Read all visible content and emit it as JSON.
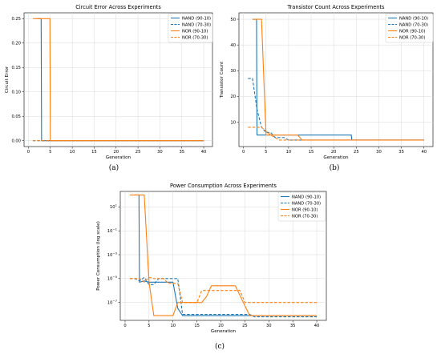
{
  "captions": [
    "(a)",
    "(b)",
    "(c)"
  ],
  "colors": {
    "nand": "#1f77b4",
    "nor": "#ff7f0e",
    "axis": "#000000"
  },
  "chart_data": [
    {
      "type": "line",
      "title": "Circuit Error Across Experiments",
      "xlabel": "Generation",
      "ylabel": "Circuit Error",
      "xlim": [
        -1,
        42
      ],
      "ylim": [
        -0.012,
        0.262
      ],
      "xticks": [
        0,
        5,
        10,
        15,
        20,
        25,
        30,
        35,
        40
      ],
      "yticks": [
        0.0,
        0.05,
        0.1,
        0.15,
        0.2,
        0.25
      ],
      "ytick_labels": [
        "0.00",
        "0.05",
        "0.10",
        "0.15",
        "0.20",
        "0.25"
      ],
      "log_y": false,
      "legend": "top-right",
      "series": [
        {
          "name": "NAND (90-10)",
          "style": "solid",
          "color": "#1f77b4",
          "x": [
            2,
            2.9,
            3,
            40
          ],
          "y": [
            0.25,
            0.25,
            0.0,
            0.0
          ]
        },
        {
          "name": "NAND (70-30)",
          "style": "dashed",
          "color": "#1f77b4",
          "x": [
            1,
            40
          ],
          "y": [
            0.0,
            0.0
          ]
        },
        {
          "name": "NOR (90-10)",
          "style": "solid",
          "color": "#ff7f0e",
          "x": [
            1,
            4.9,
            5,
            40
          ],
          "y": [
            0.25,
            0.25,
            0.0,
            0.0
          ]
        },
        {
          "name": "NOR (70-30)",
          "style": "dashed",
          "color": "#ff7f0e",
          "x": [
            1,
            40
          ],
          "y": [
            0.0,
            0.0
          ]
        }
      ]
    },
    {
      "type": "line",
      "title": "Transistor Count Across Experiments",
      "xlabel": "Generation",
      "ylabel": "Transistor Count",
      "xlim": [
        -1,
        42
      ],
      "ylim": [
        0.5,
        52.5
      ],
      "xticks": [
        0,
        5,
        10,
        15,
        20,
        25,
        30,
        35,
        40
      ],
      "yticks": [
        10,
        20,
        30,
        40,
        50
      ],
      "ytick_labels": [
        "10",
        "20",
        "30",
        "40",
        "50"
      ],
      "log_y": false,
      "legend": "top-right",
      "series": [
        {
          "name": "NAND (90-10)",
          "style": "solid",
          "color": "#1f77b4",
          "x": [
            2,
            2.9,
            3,
            23.9,
            24,
            40
          ],
          "y": [
            50,
            50,
            5,
            5,
            3,
            3
          ]
        },
        {
          "name": "NAND (70-30)",
          "style": "dashed",
          "color": "#1f77b4",
          "x": [
            1,
            2,
            3,
            4,
            5,
            6,
            7,
            8,
            9,
            10,
            21,
            22,
            40
          ],
          "y": [
            27,
            27,
            15,
            8,
            6,
            6,
            4,
            4,
            4,
            3,
            3,
            3,
            3
          ]
        },
        {
          "name": "NOR (90-10)",
          "style": "solid",
          "color": "#ff7f0e",
          "x": [
            2,
            4,
            5,
            9,
            10,
            12,
            13,
            40
          ],
          "y": [
            50,
            50,
            5,
            5,
            5,
            5,
            3,
            3
          ]
        },
        {
          "name": "NOR (70-30)",
          "style": "dashed",
          "color": "#ff7f0e",
          "x": [
            1,
            4,
            6,
            7,
            8,
            40
          ],
          "y": [
            8,
            8,
            5,
            4,
            3,
            3
          ]
        }
      ]
    },
    {
      "type": "line",
      "title": "Power Consumption Across Experiments",
      "xlabel": "Generation",
      "ylabel": "Power Consumption (log scale)",
      "xlim": [
        -1,
        42
      ],
      "ylim_log10": [
        -8.5,
        2.3
      ],
      "xticks": [
        0,
        5,
        10,
        15,
        20,
        25,
        30,
        35,
        40
      ],
      "yticks_log10": [
        1,
        -1,
        -3,
        -5,
        -7
      ],
      "ytick_labels": [
        "10^1",
        "10^-1",
        "10^-3",
        "10^-5",
        "10^-7"
      ],
      "log_y": true,
      "legend": "top-right",
      "series": [
        {
          "name": "NAND (90-10)",
          "style": "solid",
          "color": "#1f77b4",
          "x": [
            2,
            2.9,
            3,
            4,
            5,
            9,
            10,
            11,
            12,
            40
          ],
          "y_log10": [
            2,
            2,
            -5.3,
            -5.2,
            -5.3,
            -5.3,
            -5.3,
            -7.5,
            -8.1,
            -8.1
          ]
        },
        {
          "name": "NAND (70-30)",
          "style": "dashed",
          "color": "#1f77b4",
          "x": [
            1,
            2,
            3,
            4,
            5,
            6,
            7,
            8,
            11,
            12,
            26,
            27,
            40
          ],
          "y_log10": [
            -5.0,
            -5.0,
            -5.2,
            -4.9,
            -5.5,
            -5.5,
            -5.0,
            -5.0,
            -5.0,
            -8.0,
            -8.0,
            -8.2,
            -8.2
          ]
        },
        {
          "name": "NOR (90-10)",
          "style": "solid",
          "color": "#ff7f0e",
          "x": [
            1,
            2,
            4,
            5,
            6,
            10,
            11,
            16,
            17,
            18,
            22,
            23,
            26,
            27,
            40
          ],
          "y_log10": [
            2,
            2,
            2,
            -5.3,
            -8.1,
            -8.1,
            -7.0,
            -7.0,
            -6.5,
            -5.6,
            -5.6,
            -5.6,
            -8.1,
            -8.1,
            -8.1
          ]
        },
        {
          "name": "NOR (70-30)",
          "style": "dashed",
          "color": "#ff7f0e",
          "x": [
            1,
            3,
            4,
            5,
            6,
            8,
            9,
            11,
            12,
            15,
            16,
            21,
            22,
            24,
            25,
            26,
            40
          ],
          "y_log10": [
            -5.0,
            -5.0,
            -5.3,
            -4.9,
            -5.0,
            -5.0,
            -5.4,
            -5.4,
            -7.0,
            -7.0,
            -6.0,
            -6.0,
            -6.0,
            -6.0,
            -7.0,
            -7.0,
            -7.0
          ]
        }
      ]
    }
  ]
}
